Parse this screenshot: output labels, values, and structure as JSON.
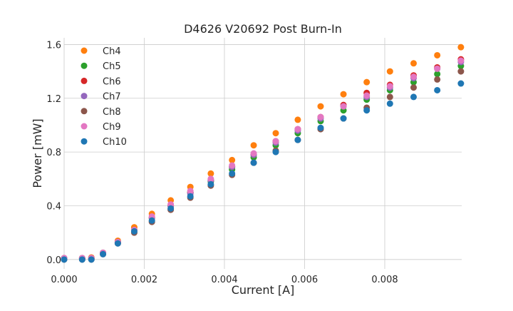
{
  "chart_data": {
    "type": "scatter",
    "title": "D4626 V20692 Post Burn-In",
    "xlabel": "Current [A]",
    "ylabel": "Power [mW]",
    "xlim": [
      0.0,
      0.00992
    ],
    "ylim": [
      -0.07,
      1.65
    ],
    "x_ticks": [
      0.0,
      0.002,
      0.004,
      0.006,
      0.008
    ],
    "x_tick_labels": [
      "0.000",
      "0.002",
      "0.004",
      "0.006",
      "0.008"
    ],
    "y_ticks": [
      0.0,
      0.4,
      0.8,
      1.2,
      1.6
    ],
    "y_tick_labels": [
      "0.0",
      "0.4",
      "0.8",
      "1.2",
      "1.6"
    ],
    "grid": true,
    "legend_position": "top-left",
    "x": [
      0.0,
      0.00045,
      0.00068,
      0.00097,
      0.00134,
      0.00175,
      0.00219,
      0.00266,
      0.00315,
      0.00366,
      0.00419,
      0.00473,
      0.00528,
      0.00583,
      0.0064,
      0.00697,
      0.00755,
      0.00813,
      0.00872,
      0.00931,
      0.0099
    ],
    "series": [
      {
        "name": "Ch4",
        "color": "#ff7f0e",
        "values": [
          0.01,
          0.01,
          0.015,
          0.05,
          0.14,
          0.24,
          0.34,
          0.44,
          0.54,
          0.64,
          0.74,
          0.85,
          0.94,
          1.04,
          1.14,
          1.23,
          1.32,
          1.4,
          1.46,
          1.52,
          1.58
        ]
      },
      {
        "name": "Ch5",
        "color": "#2ca02c",
        "values": [
          0.01,
          0.01,
          0.01,
          0.05,
          0.13,
          0.22,
          0.31,
          0.4,
          0.5,
          0.58,
          0.67,
          0.76,
          0.85,
          0.94,
          1.03,
          1.11,
          1.19,
          1.26,
          1.32,
          1.38,
          1.44
        ]
      },
      {
        "name": "Ch6",
        "color": "#d62728",
        "values": [
          0.01,
          0.01,
          0.01,
          0.05,
          0.13,
          0.22,
          0.31,
          0.4,
          0.5,
          0.59,
          0.69,
          0.78,
          0.88,
          0.97,
          1.06,
          1.15,
          1.24,
          1.3,
          1.37,
          1.43,
          1.49
        ]
      },
      {
        "name": "Ch7",
        "color": "#9467bd",
        "values": [
          0.01,
          0.01,
          0.01,
          0.05,
          0.13,
          0.22,
          0.31,
          0.4,
          0.49,
          0.59,
          0.69,
          0.78,
          0.87,
          0.96,
          1.05,
          1.14,
          1.21,
          1.28,
          1.35,
          1.42,
          1.47
        ]
      },
      {
        "name": "Ch8",
        "color": "#8c564b",
        "values": [
          0.0,
          0.0,
          0.0,
          0.04,
          0.12,
          0.2,
          0.28,
          0.37,
          0.46,
          0.55,
          0.63,
          0.72,
          0.81,
          0.89,
          0.97,
          1.05,
          1.13,
          1.21,
          1.28,
          1.34,
          1.4
        ]
      },
      {
        "name": "Ch9",
        "color": "#e377c2",
        "values": [
          0.01,
          0.01,
          0.01,
          0.05,
          0.13,
          0.22,
          0.32,
          0.41,
          0.51,
          0.6,
          0.7,
          0.79,
          0.88,
          0.97,
          1.06,
          1.14,
          1.22,
          1.29,
          1.36,
          1.42,
          1.48
        ]
      },
      {
        "name": "Ch10",
        "color": "#1f77b4",
        "values": [
          0.0,
          0.0,
          0.0,
          0.04,
          0.12,
          0.21,
          0.29,
          0.38,
          0.47,
          0.56,
          0.64,
          0.72,
          0.8,
          0.89,
          0.98,
          1.05,
          1.11,
          1.16,
          1.21,
          1.26,
          1.31
        ]
      }
    ]
  }
}
